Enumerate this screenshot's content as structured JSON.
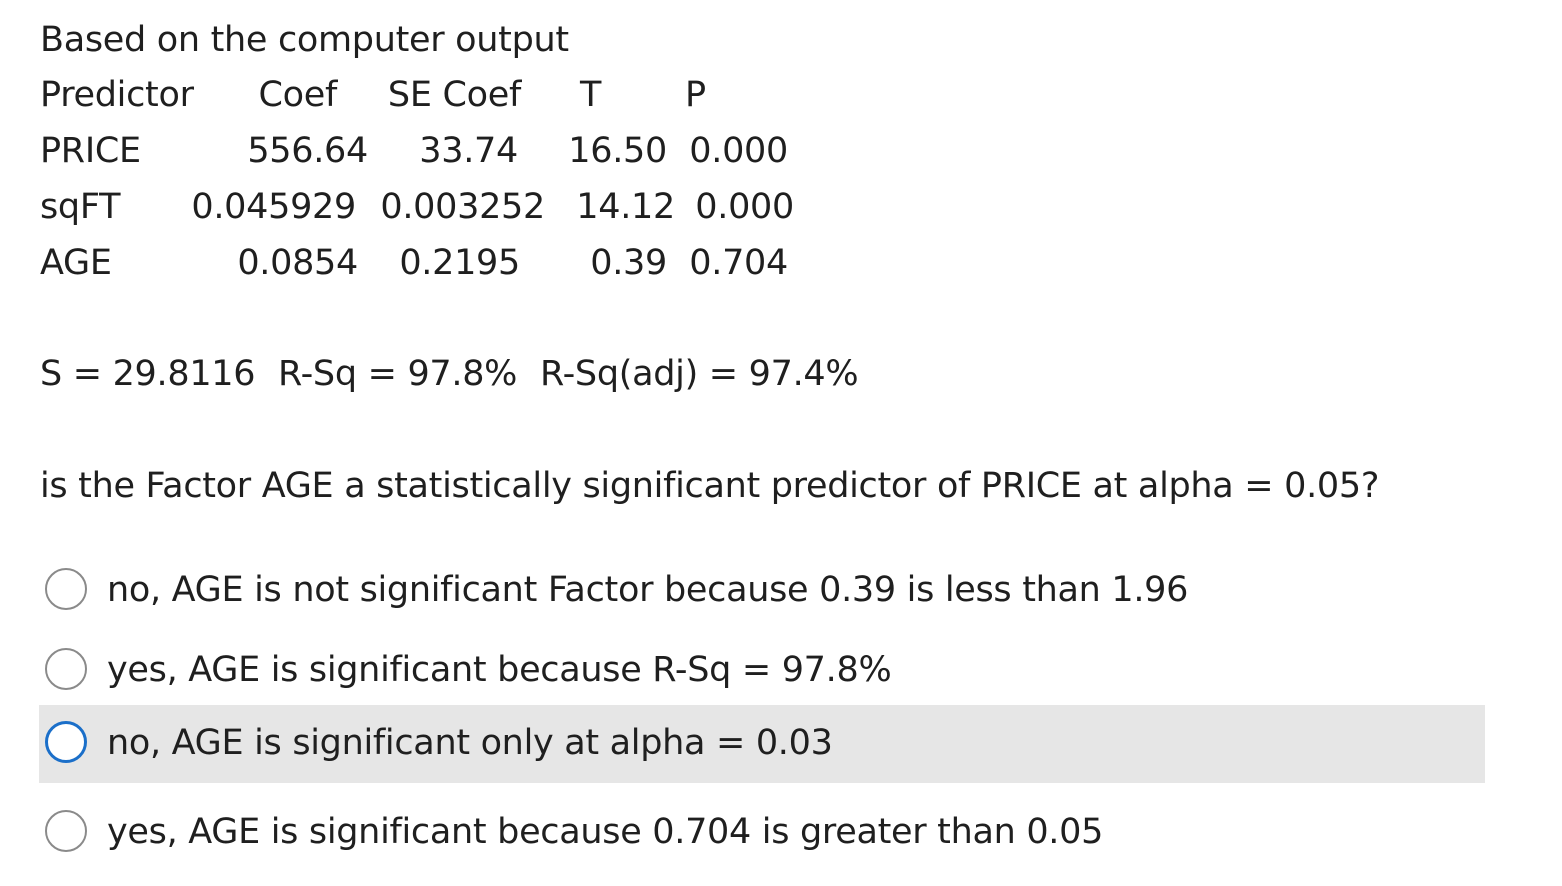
{
  "intro": "Based on the computer output",
  "table": {
    "headers": [
      "Predictor",
      "Coef",
      "SE Coef",
      "T",
      "P"
    ],
    "rows": [
      [
        "PRICE",
        "556.64",
        "33.74",
        "16.50",
        "0.000"
      ],
      [
        "sqFT",
        "0.045929",
        "0.003252",
        "14.12",
        "0.000"
      ],
      [
        "AGE",
        "0.0854",
        "0.2195",
        "0.39",
        "0.704"
      ]
    ]
  },
  "stats": {
    "s": "S = 29.8116",
    "rsq": "R-Sq = 97.8%",
    "rsq_adj": "R-Sq(adj) = 97.4%"
  },
  "question": "is the Factor AGE a statistically significant predictor of PRICE at alpha = 0.05?",
  "options": [
    {
      "label": "no,  AGE is not significant Factor because 0.39 is less than 1.96",
      "selected": false
    },
    {
      "label": "yes, AGE is significant because R-Sq = 97.8%",
      "selected": false
    },
    {
      "label": "no, AGE is significant only at alpha = 0.03",
      "selected": false,
      "hovered": true
    },
    {
      "label": "yes, AGE is significant because 0.704 is greater than 0.05",
      "selected": false
    }
  ],
  "colors": {
    "text": "#1f1f1f",
    "hover_bg": "#e6e6e6",
    "focus_ring": "#1b6fc9",
    "radio_border": "#8a8a8a"
  }
}
